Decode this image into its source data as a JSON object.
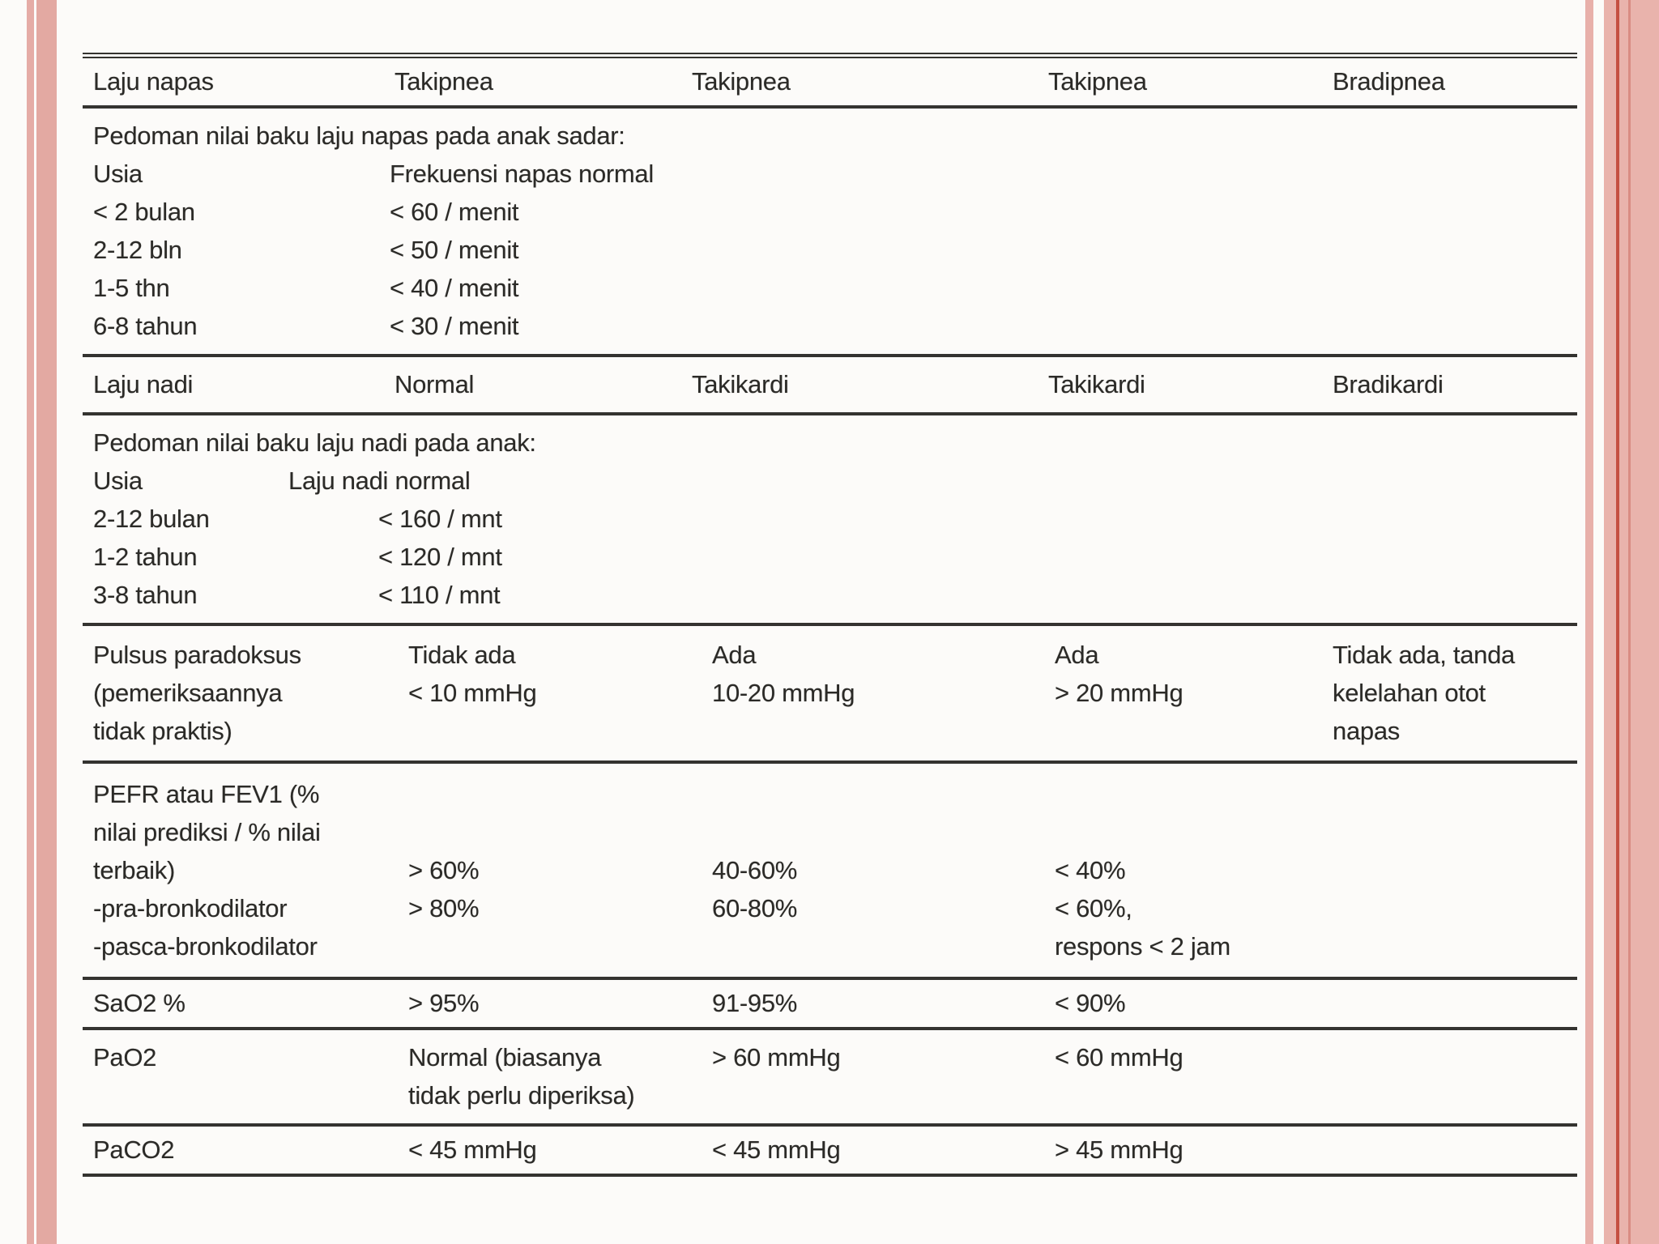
{
  "colors": {
    "accent_pink": "#e9b3ac",
    "accent_dark_red": "#c44f41",
    "rule_color": "#343330",
    "background": "#fcfbf9"
  },
  "table": {
    "header1": {
      "cells": [
        "Laju napas",
        "Takipnea",
        "Takipnea",
        "Takipnea",
        "Bradipnea"
      ]
    },
    "guide1": {
      "intro": "Pedoman nilai baku laju napas pada anak sadar:",
      "rows": [
        {
          "label": "Usia",
          "value": "Frekuensi napas normal"
        },
        {
          "label": "< 2 bulan",
          "value": "< 60 / menit"
        },
        {
          "label": "2-12 bln",
          "value": "< 50 / menit"
        },
        {
          "label": "1-5  thn",
          "value": "< 40 / menit"
        },
        {
          "label": "6-8 tahun",
          "value": "< 30 / menit"
        }
      ]
    },
    "header2": {
      "cells": [
        "Laju nadi",
        "Normal",
        "Takikardi",
        "Takikardi",
        "Bradikardi"
      ]
    },
    "guide2": {
      "intro": "Pedoman nilai baku laju nadi pada anak:",
      "rows": [
        {
          "label": "Usia",
          "value": "Laju nadi normal"
        },
        {
          "label": "2-12 bulan",
          "value": "< 160 / mnt"
        },
        {
          "label": "1-2 tahun",
          "value": "< 120 / mnt"
        },
        {
          "label": "3-8 tahun",
          "value": "< 110 / mnt"
        }
      ]
    },
    "row_pulsus": {
      "c1": [
        "Pulsus paradoksus",
        "(pemeriksaannya",
        "tidak praktis)"
      ],
      "c2": [
        "Tidak ada",
        "< 10 mmHg"
      ],
      "c3": [
        "Ada",
        "10-20 mmHg"
      ],
      "c4": [
        "Ada",
        "> 20 mmHg"
      ],
      "c5": [
        "Tidak ada, tanda",
        "kelelahan otot",
        "napas"
      ]
    },
    "row_pefr": {
      "c1": [
        "PEFR atau FEV1 (%",
        "nilai prediksi / % nilai",
        "terbaik)",
        "-pra-bronkodilator",
        "-pasca-bronkodilator"
      ],
      "c2": [
        "",
        "",
        "> 60%",
        "> 80%"
      ],
      "c3": [
        "",
        "",
        "40-60%",
        "60-80%"
      ],
      "c4": [
        "",
        "",
        "< 40%",
        "< 60%,",
        "respons < 2 jam"
      ]
    },
    "row_sao2": {
      "c1": [
        "SaO2 %"
      ],
      "c2": [
        "> 95%"
      ],
      "c3": [
        "91-95%"
      ],
      "c4": [
        "< 90%"
      ]
    },
    "row_pao2": {
      "c1": [
        "PaO2"
      ],
      "c2": [
        "Normal (biasanya",
        "tidak perlu diperiksa)"
      ],
      "c3": [
        "> 60 mmHg"
      ],
      "c4": [
        "< 60 mmHg"
      ]
    },
    "row_paco2": {
      "c1": [
        "PaCO2"
      ],
      "c2": [
        "< 45 mmHg"
      ],
      "c3": [
        "< 45 mmHg"
      ],
      "c4": [
        "> 45 mmHg"
      ]
    }
  }
}
